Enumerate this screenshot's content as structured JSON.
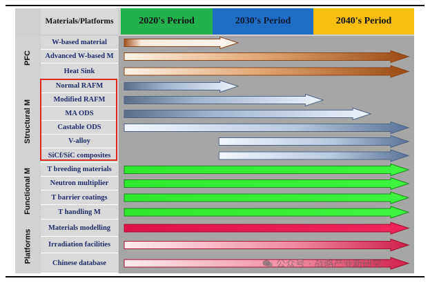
{
  "header": {
    "materials_label": "Materials/Platforms",
    "periods": [
      {
        "label": "2020's Period",
        "color": "#22b14c"
      },
      {
        "label": "2030's Period",
        "color": "#1f6dc4"
      },
      {
        "label": "2040's Period",
        "color": "#f6bf0f"
      }
    ]
  },
  "groups": [
    {
      "label": "PFC",
      "rows": [
        "W-based material",
        "Advanced W-based M",
        "Heat Sink"
      ]
    },
    {
      "label": "Structural M",
      "rows": [
        "Normal RAFM",
        "Modified RAFM",
        "MA ODS",
        "Castable ODS",
        "V-alloy",
        "SiCf/SiC composites"
      ]
    },
    {
      "label": "Functional M",
      "rows": [
        "T breeding materials",
        "Neutron multiplier",
        "T barrier coatings",
        "T handling M"
      ]
    },
    {
      "label": "Platforms",
      "rows": [
        "Materials modelling",
        "Irradiation facilities",
        "Chinese database"
      ]
    }
  ],
  "timeline": {
    "start_period": 2020,
    "end_period": 2050,
    "rows": [
      {
        "name": "W-based material",
        "start": 2020,
        "end": 2032,
        "style": "brown-light"
      },
      {
        "name": "Advanced W-based M",
        "start": 2020,
        "end": 2050,
        "style": "brown-gradient"
      },
      {
        "name": "Heat Sink",
        "start": 2020,
        "end": 2050,
        "style": "brown-gradient"
      },
      {
        "name": "Normal RAFM",
        "start": 2020,
        "end": 2032,
        "style": "blue-gradient"
      },
      {
        "name": "Modified RAFM",
        "start": 2020,
        "end": 2041,
        "style": "blue-gradient"
      },
      {
        "name": "MA ODS",
        "start": 2020,
        "end": 2046,
        "style": "blue-gradient"
      },
      {
        "name": "Castable ODS",
        "start": 2020,
        "end": 2050,
        "style": "blue-light"
      },
      {
        "name": "V-alloy",
        "start": 2030,
        "end": 2050,
        "style": "blue-light"
      },
      {
        "name": "SiCf/SiC composites",
        "start": 2030,
        "end": 2050,
        "style": "blue-light"
      },
      {
        "name": "T breeding materials",
        "start": 2020,
        "end": 2050,
        "style": "green"
      },
      {
        "name": "Neutron multiplier",
        "start": 2020,
        "end": 2050,
        "style": "green"
      },
      {
        "name": "T barrier coatings",
        "start": 2020,
        "end": 2050,
        "style": "green"
      },
      {
        "name": "T handling M",
        "start": 2020,
        "end": 2050,
        "style": "green"
      },
      {
        "name": "Materials modelling",
        "start": 2020,
        "end": 2050,
        "style": "red"
      },
      {
        "name": "Irradiation facilities",
        "start": 2020,
        "end": 2050,
        "style": "red-light"
      },
      {
        "name": "Chinese database",
        "start": 2020,
        "end": 2050,
        "style": "red-light"
      }
    ]
  },
  "colors": {
    "brown": "#a0521c",
    "blue": "#5f7da6",
    "green": "#2ee82e",
    "red": "#e0124a",
    "highlight": "#e0271d"
  },
  "watermark": {
    "text": "公众号 · 战略产业新研究",
    "icon": "wechat-icon"
  }
}
